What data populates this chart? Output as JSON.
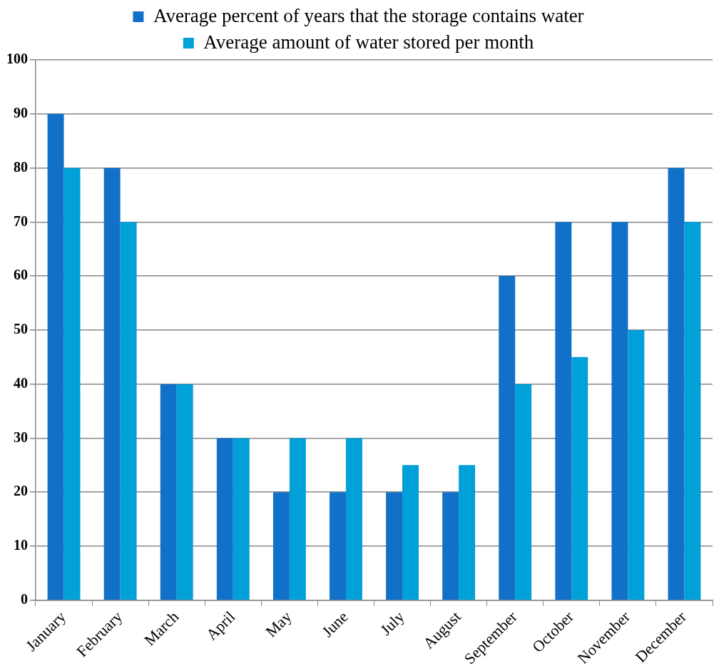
{
  "chart_data": {
    "type": "bar",
    "categories": [
      "January",
      "February",
      "March",
      "April",
      "May",
      "June",
      "July",
      "August",
      "September",
      "October",
      "November",
      "December"
    ],
    "series": [
      {
        "name": "Average percent of years that the storage contains water",
        "color": "#1170c8",
        "values": [
          90,
          80,
          40,
          30,
          20,
          20,
          20,
          20,
          60,
          70,
          70,
          80
        ]
      },
      {
        "name": "Average amount of water stored per month",
        "color": "#00a0d8",
        "values": [
          80,
          70,
          40,
          30,
          30,
          30,
          25,
          25,
          40,
          45,
          50,
          70
        ]
      }
    ],
    "ylim": [
      0,
      100
    ],
    "yticks": [
      0,
      10,
      20,
      30,
      40,
      50,
      60,
      70,
      80,
      90,
      100
    ],
    "grid": "y",
    "legend": "top"
  }
}
